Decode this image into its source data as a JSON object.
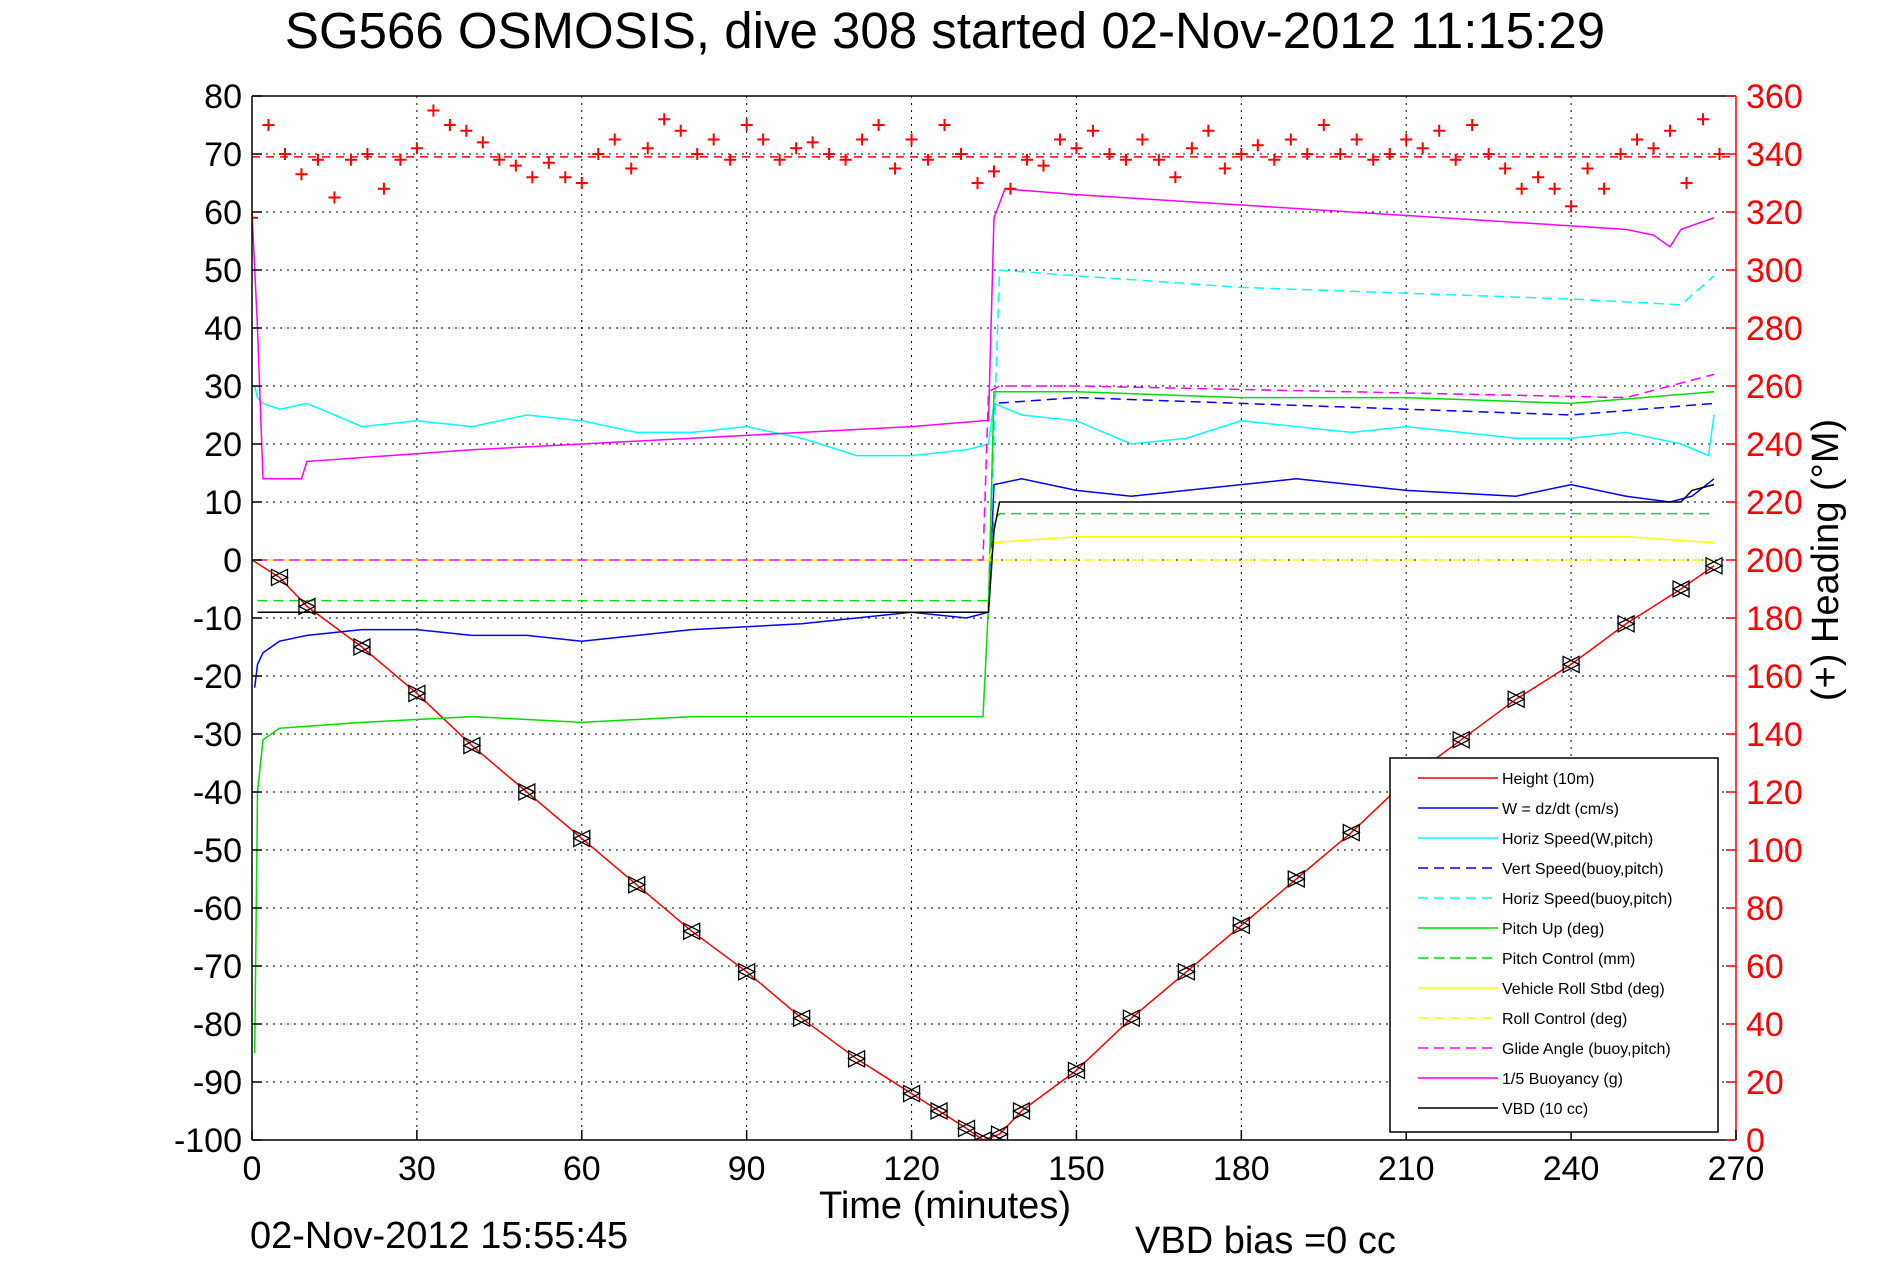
{
  "chart_data": {
    "type": "line",
    "title": "SG566 OSMOSIS, dive 308 started 02-Nov-2012 11:15:29",
    "xlabel": "Time (minutes)",
    "ylabel_right": "(+) Heading (°M)",
    "footer_left": "02-Nov-2012 15:55:45",
    "footer_right": "VBD bias =0 cc",
    "xlim": [
      0,
      270
    ],
    "ylim": [
      -100,
      80
    ],
    "y2lim": [
      0,
      360
    ],
    "xticks": [
      0,
      30,
      60,
      90,
      120,
      150,
      180,
      210,
      240,
      270
    ],
    "yticks": [
      80,
      70,
      60,
      50,
      40,
      30,
      20,
      10,
      0,
      -10,
      -20,
      -30,
      -40,
      -50,
      -60,
      -70,
      -80,
      -90,
      -100
    ],
    "y2ticks": [
      360,
      340,
      320,
      300,
      280,
      260,
      240,
      220,
      200,
      180,
      160,
      140,
      120,
      100,
      80,
      60,
      40,
      20,
      0
    ],
    "grid": true,
    "legend_position": "bottom-right",
    "series": [
      {
        "name": "Height (10m)",
        "color": "#ff0000",
        "style": "solid",
        "x": [
          0,
          5,
          10,
          20,
          30,
          40,
          50,
          60,
          70,
          80,
          90,
          100,
          110,
          120,
          125,
          130,
          133,
          136,
          140,
          150,
          160,
          170,
          180,
          190,
          200,
          210,
          220,
          230,
          240,
          250,
          260,
          266
        ],
        "y": [
          0,
          -3,
          -8,
          -15,
          -23,
          -32,
          -40,
          -48,
          -56,
          -64,
          -71,
          -79,
          -86,
          -92,
          -95,
          -98,
          -100,
          -99,
          -95,
          -88,
          -79,
          -71,
          -63,
          -55,
          -47,
          -38,
          -31,
          -24,
          -18,
          -11,
          -5,
          -1
        ]
      },
      {
        "name": "W = dz/dt (cm/s)",
        "color": "#0000ff",
        "style": "solid",
        "x": [
          0.5,
          1,
          2,
          5,
          10,
          20,
          30,
          40,
          50,
          60,
          80,
          100,
          110,
          120,
          130,
          134,
          135,
          140,
          150,
          160,
          170,
          190,
          210,
          230,
          240,
          250,
          258,
          262,
          266
        ],
        "y": [
          -22,
          -18,
          -16,
          -14,
          -13,
          -12,
          -12,
          -13,
          -13,
          -14,
          -12,
          -11,
          -10,
          -9,
          -10,
          -9,
          13,
          14,
          12,
          11,
          12,
          14,
          12,
          11,
          13,
          11,
          10,
          11,
          14
        ]
      },
      {
        "name": "Horiz Speed(W,pitch)",
        "color": "#00ffff",
        "style": "solid",
        "x": [
          0.5,
          1,
          2,
          5,
          10,
          20,
          30,
          40,
          50,
          60,
          70,
          80,
          90,
          100,
          110,
          120,
          130,
          134,
          135,
          140,
          150,
          160,
          170,
          180,
          190,
          200,
          210,
          220,
          230,
          240,
          250,
          260,
          265,
          266
        ],
        "y": [
          30,
          28,
          27,
          26,
          27,
          23,
          24,
          23,
          25,
          24,
          22,
          22,
          23,
          21,
          18,
          18,
          19,
          20,
          27,
          25,
          24,
          20,
          21,
          24,
          23,
          22,
          23,
          22,
          21,
          21,
          22,
          20,
          18,
          25
        ]
      },
      {
        "name": "Vert Speed(buoy,pitch)",
        "color": "#0000ff",
        "style": "dashed",
        "x": [
          134,
          135,
          150,
          180,
          210,
          240,
          266
        ],
        "y": [
          -8,
          27,
          28,
          27,
          26,
          25,
          27
        ]
      },
      {
        "name": "Horiz Speed(buoy,pitch)",
        "color": "#00ffff",
        "style": "dashed",
        "x": [
          134,
          136,
          150,
          180,
          210,
          240,
          260,
          266
        ],
        "y": [
          -8,
          50,
          49,
          47,
          46,
          45,
          44,
          49
        ]
      },
      {
        "name": "Pitch Up (deg)",
        "color": "#00dd00",
        "style": "solid",
        "x": [
          0.5,
          1,
          2,
          5,
          20,
          40,
          60,
          80,
          100,
          120,
          133,
          134,
          135,
          150,
          180,
          210,
          240,
          266
        ],
        "y": [
          -85,
          -40,
          -31,
          -29,
          -28,
          -27,
          -28,
          -27,
          -27,
          -27,
          -27,
          -8,
          29,
          29,
          28,
          28,
          27,
          29
        ]
      },
      {
        "name": "Pitch Control (mm)",
        "color": "#00dd00",
        "style": "dashed",
        "x": [
          1,
          134,
          135,
          136,
          266
        ],
        "y": [
          -7,
          -7,
          7,
          8,
          8
        ]
      },
      {
        "name": "Vehicle Roll Stbd (deg)",
        "color": "#ffff00",
        "style": "solid",
        "x": [
          0,
          2,
          10,
          50,
          100,
          134,
          135,
          150,
          200,
          250,
          266
        ],
        "y": [
          0,
          0,
          0,
          0,
          0,
          0,
          3,
          4,
          4,
          4,
          3
        ]
      },
      {
        "name": "Roll Control (deg)",
        "color": "#ffff00",
        "style": "dashed",
        "x": [
          0,
          266
        ],
        "y": [
          0,
          0
        ]
      },
      {
        "name": "Glide Angle (buoy,pitch)",
        "color": "#ff00ff",
        "style": "dashed",
        "x": [
          1,
          133,
          134,
          136,
          150,
          200,
          250,
          266
        ],
        "y": [
          0,
          0,
          29,
          30,
          30,
          29,
          28,
          32
        ]
      },
      {
        "name": "1/5 Buoyancy (g)",
        "color": "#ff00ff",
        "style": "solid",
        "x": [
          0,
          1,
          2,
          9,
          10,
          40,
          80,
          120,
          133,
          134,
          135,
          137,
          150,
          200,
          250,
          255,
          258,
          260,
          266
        ],
        "y": [
          60,
          40,
          14,
          14,
          17,
          19,
          21,
          23,
          24,
          24,
          59,
          64,
          63,
          60,
          57,
          56,
          54,
          57,
          59
        ]
      },
      {
        "name": "VBD (10 cc)",
        "color": "#000000",
        "style": "solid",
        "x": [
          1,
          134,
          135,
          136,
          260,
          262,
          266
        ],
        "y": [
          -9,
          -9,
          5,
          10,
          10,
          12,
          13
        ]
      }
    ],
    "heading_series": {
      "name": "Heading",
      "axis": "right",
      "color": "#ff0000",
      "marker": "+",
      "mean_line": 339,
      "x": [
        0,
        3,
        6,
        9,
        12,
        15,
        18,
        21,
        24,
        27,
        30,
        33,
        36,
        39,
        42,
        45,
        48,
        51,
        54,
        57,
        60,
        63,
        66,
        69,
        72,
        75,
        78,
        81,
        84,
        87,
        90,
        93,
        96,
        99,
        102,
        105,
        108,
        111,
        114,
        117,
        120,
        123,
        126,
        129,
        132,
        135,
        138,
        141,
        144,
        147,
        150,
        153,
        156,
        159,
        162,
        165,
        168,
        171,
        174,
        177,
        180,
        183,
        186,
        189,
        192,
        195,
        198,
        201,
        204,
        207,
        210,
        213,
        216,
        219,
        222,
        225,
        228,
        231,
        234,
        237,
        240,
        243,
        246,
        249,
        252,
        255,
        258,
        261,
        264,
        267
      ],
      "y": [
        318,
        350,
        340,
        333,
        338,
        325,
        338,
        340,
        328,
        338,
        342,
        355,
        350,
        348,
        344,
        338,
        336,
        332,
        337,
        332,
        330,
        340,
        345,
        335,
        342,
        352,
        348,
        340,
        345,
        338,
        350,
        345,
        338,
        342,
        344,
        340,
        338,
        345,
        350,
        335,
        345,
        338,
        350,
        340,
        330,
        334,
        328,
        338,
        336,
        345,
        342,
        348,
        340,
        338,
        345,
        338,
        332,
        342,
        348,
        335,
        340,
        343,
        338,
        345,
        340,
        350,
        340,
        345,
        338,
        340,
        345,
        342,
        348,
        338,
        350,
        340,
        335,
        328,
        332,
        328,
        322,
        335,
        328,
        340,
        345,
        342,
        348,
        330,
        352,
        340
      ]
    }
  }
}
